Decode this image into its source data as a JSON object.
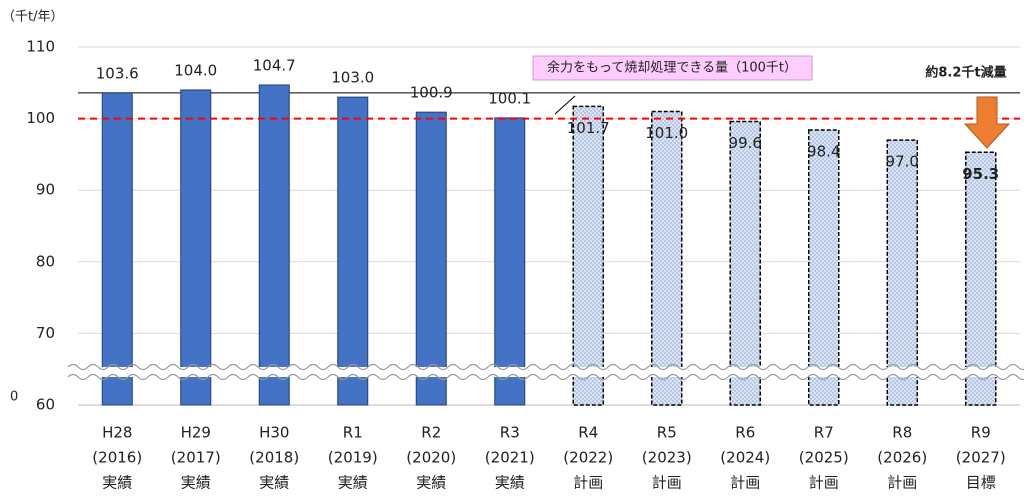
{
  "chart_data": {
    "type": "bar",
    "unit_label": "（千t/年）",
    "categories": [
      [
        "H28",
        "(2016)",
        "実績"
      ],
      [
        "H29",
        "(2017)",
        "実績"
      ],
      [
        "H30",
        "(2018)",
        "実績"
      ],
      [
        "R1",
        "(2019)",
        "実績"
      ],
      [
        "R2",
        "(2020)",
        "実績"
      ],
      [
        "R3",
        "(2021)",
        "実績"
      ],
      [
        "R4",
        "(2022)",
        "計画"
      ],
      [
        "R5",
        "(2023)",
        "計画"
      ],
      [
        "R6",
        "(2024)",
        "計画"
      ],
      [
        "R7",
        "(2025)",
        "計画"
      ],
      [
        "R8",
        "(2026)",
        "計画"
      ],
      [
        "R9",
        "(2027)",
        "目標"
      ]
    ],
    "series": [
      {
        "color": "#4472c4",
        "style": "solid",
        "values": [
          103.6,
          104.0,
          104.7,
          103.0,
          100.9,
          100.1,
          null,
          null,
          null,
          null,
          null,
          null
        ],
        "value_labels": [
          "103.6",
          "104.0",
          "104.7",
          "103.0",
          "100.9",
          "100.1",
          null,
          null,
          null,
          null,
          null,
          null
        ]
      },
      {
        "color": "#dae3f3",
        "style": "dotted",
        "values": [
          null,
          null,
          null,
          null,
          null,
          null,
          101.7,
          101.0,
          99.6,
          98.4,
          97.0,
          95.3
        ],
        "value_labels": [
          null,
          null,
          null,
          null,
          null,
          null,
          "101.7",
          "101.0",
          "99.6",
          "98.4",
          "97.0",
          "95.3"
        ]
      }
    ],
    "ylim": [
      60,
      110
    ],
    "yticks": [
      60,
      70,
      80,
      90,
      100,
      110
    ],
    "axis_break_label": "0",
    "grid": true,
    "reference_line": {
      "value": 100,
      "color": "#ff0000",
      "label": "余力をもって焼却処理できる量（100千t）"
    },
    "baseline": 103.6,
    "reduction_label": "約8.2千t減量"
  }
}
